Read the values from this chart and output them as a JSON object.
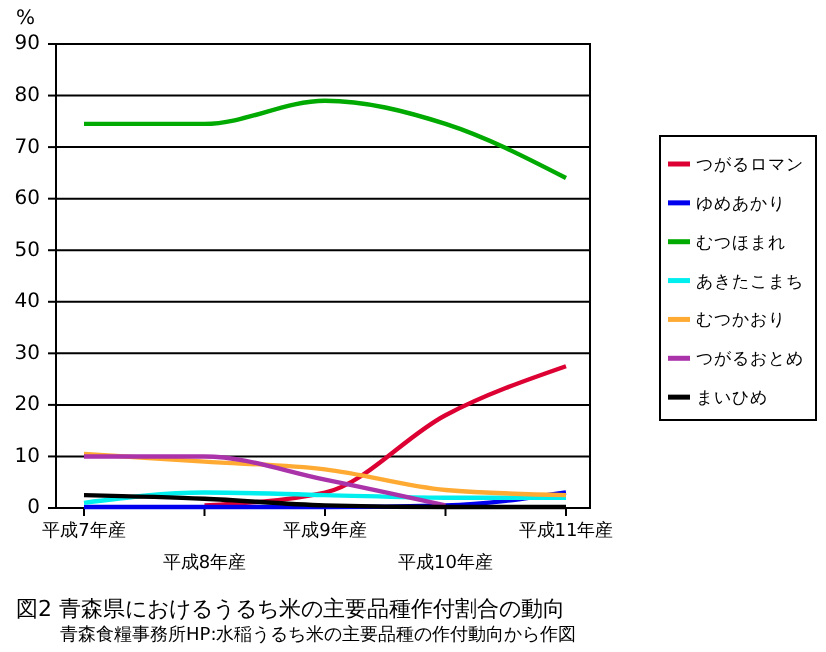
{
  "chart_data": {
    "type": "line",
    "title": "図2 青森県におけるうるち米の主要品種作付割合の動向",
    "ylabel": "%",
    "annotations": [
      "青森食糧事務所HP:水稲うるち米の主要品種の作付動向から作図"
    ],
    "categories": [
      "平成7年産",
      "平成8年産",
      "平成9年産",
      "平成10年産",
      "平成11年産"
    ],
    "ylim": [
      0,
      90
    ],
    "yticks": [
      0,
      10,
      20,
      30,
      40,
      50,
      60,
      70,
      80,
      90
    ],
    "grid": "y",
    "legend": "right",
    "marker": "none",
    "line_style": "solid",
    "series": [
      {
        "name": "つがるロマン",
        "color": "#dd0033",
        "values": [
          null,
          0.5,
          3,
          18,
          27.5
        ]
      },
      {
        "name": "ゆめあかり",
        "color": "#0000ee",
        "values": [
          0.2,
          0.2,
          0.2,
          0.5,
          3
        ]
      },
      {
        "name": "むつほまれ",
        "color": "#00aa00",
        "values": [
          74.5,
          74.5,
          79,
          74.5,
          64
        ]
      },
      {
        "name": "あきたこまち",
        "color": "#00eeee",
        "values": [
          1,
          3,
          2.5,
          2,
          2
        ]
      },
      {
        "name": "むつかおり",
        "color": "#ffaa33",
        "values": [
          10.5,
          9,
          7.5,
          3.5,
          2.5
        ]
      },
      {
        "name": "つがるおとめ",
        "color": "#aa33aa",
        "values": [
          10,
          10,
          5.5,
          0.5,
          null
        ]
      },
      {
        "name": "まいひめ",
        "color": "#000000",
        "values": [
          2.5,
          1.8,
          0.5,
          0.2,
          0.2
        ]
      }
    ]
  }
}
